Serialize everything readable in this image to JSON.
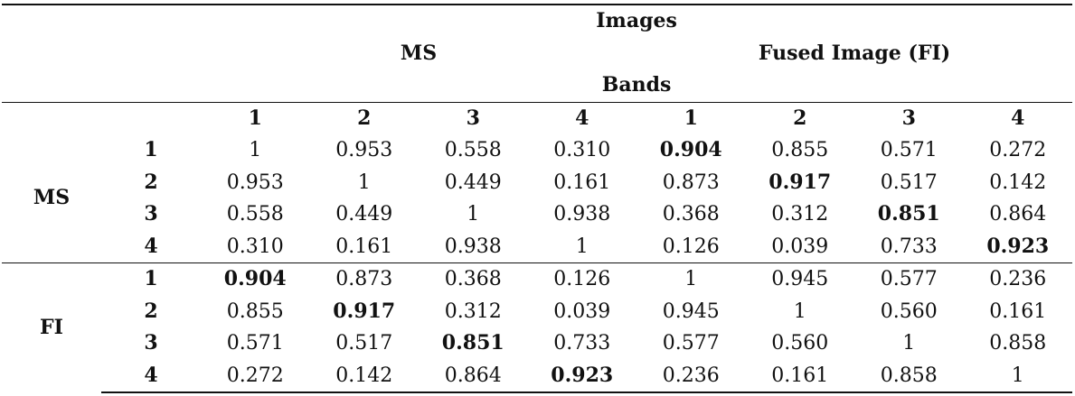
{
  "header": {
    "images": "Images",
    "ms": "MS",
    "fi": "Fused Image (FI)",
    "bands": "Bands",
    "band_labels": [
      "1",
      "2",
      "3",
      "4",
      "1",
      "2",
      "3",
      "4"
    ]
  },
  "groups": [
    {
      "label": "MS",
      "rows": [
        {
          "band": "1",
          "values": [
            "1",
            "0.953",
            "0.558",
            "0.310",
            "0.904",
            "0.855",
            "0.571",
            "0.272"
          ],
          "bold": [
            4
          ]
        },
        {
          "band": "2",
          "values": [
            "0.953",
            "1",
            "0.449",
            "0.161",
            "0.873",
            "0.917",
            "0.517",
            "0.142"
          ],
          "bold": [
            5
          ]
        },
        {
          "band": "3",
          "values": [
            "0.558",
            "0.449",
            "1",
            "0.938",
            "0.368",
            "0.312",
            "0.851",
            "0.864"
          ],
          "bold": [
            6
          ]
        },
        {
          "band": "4",
          "values": [
            "0.310",
            "0.161",
            "0.938",
            "1",
            "0.126",
            "0.039",
            "0.733",
            "0.923"
          ],
          "bold": [
            7
          ]
        }
      ]
    },
    {
      "label": "FI",
      "rows": [
        {
          "band": "1",
          "values": [
            "0.904",
            "0.873",
            "0.368",
            "0.126",
            "1",
            "0.945",
            "0.577",
            "0.236"
          ],
          "bold": [
            0
          ]
        },
        {
          "band": "2",
          "values": [
            "0.855",
            "0.917",
            "0.312",
            "0.039",
            "0.945",
            "1",
            "0.560",
            "0.161"
          ],
          "bold": [
            1
          ]
        },
        {
          "band": "3",
          "values": [
            "0.571",
            "0.517",
            "0.851",
            "0.733",
            "0.577",
            "0.560",
            "1",
            "0.858"
          ],
          "bold": [
            2
          ]
        },
        {
          "band": "4",
          "values": [
            "0.272",
            "0.142",
            "0.864",
            "0.923",
            "0.236",
            "0.161",
            "0.858",
            "1"
          ],
          "bold": [
            3
          ]
        }
      ]
    }
  ]
}
